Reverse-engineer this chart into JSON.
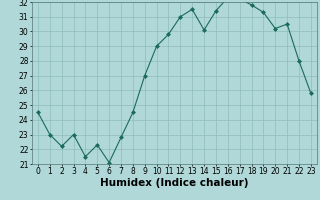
{
  "xlabel": "Humidex (Indice chaleur)",
  "x": [
    0,
    1,
    2,
    3,
    4,
    5,
    6,
    7,
    8,
    9,
    10,
    11,
    12,
    13,
    14,
    15,
    16,
    17,
    18,
    19,
    20,
    21,
    22,
    23
  ],
  "y": [
    24.5,
    23.0,
    22.2,
    23.0,
    21.5,
    22.3,
    21.1,
    22.8,
    24.5,
    27.0,
    29.0,
    29.8,
    31.0,
    31.5,
    30.1,
    31.4,
    32.3,
    32.2,
    31.8,
    31.3,
    30.2,
    30.5,
    28.0,
    25.8
  ],
  "line_color": "#1a6b5a",
  "marker": "D",
  "marker_size": 2.0,
  "bg_color": "#b0d8d8",
  "grid_color": "#90bcbc",
  "ylim": [
    21,
    32
  ],
  "xlim": [
    -0.5,
    23.5
  ],
  "yticks": [
    21,
    22,
    23,
    24,
    25,
    26,
    27,
    28,
    29,
    30,
    31,
    32
  ],
  "xticks": [
    0,
    1,
    2,
    3,
    4,
    5,
    6,
    7,
    8,
    9,
    10,
    11,
    12,
    13,
    14,
    15,
    16,
    17,
    18,
    19,
    20,
    21,
    22,
    23
  ],
  "tick_fontsize": 5.5,
  "label_fontsize": 7.5
}
